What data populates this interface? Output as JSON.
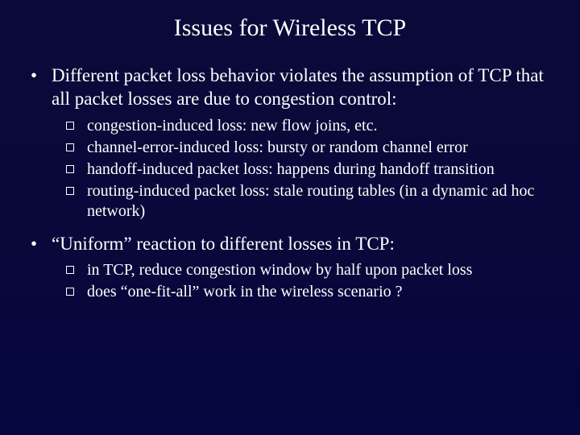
{
  "slide": {
    "title": "Issues for Wireless TCP",
    "bullets": [
      {
        "text": "Different packet loss behavior violates the assumption of TCP that all packet losses are due to congestion control:",
        "sub": [
          "congestion-induced loss: new flow joins, etc.",
          "channel-error-induced loss:  bursty or random channel error",
          "handoff-induced packet loss: happens during handoff transition",
          "routing-induced packet loss: stale routing tables (in a dynamic ad hoc network)"
        ]
      },
      {
        "text": "“Uniform” reaction to different losses in TCP:",
        "sub": [
          "in TCP, reduce congestion window by half upon packet loss",
          "does “one-fit-all” work in the wireless scenario ?"
        ]
      }
    ],
    "colors": {
      "background_top": "#0a0a3a",
      "background_bottom": "#060640",
      "text": "#ffffff"
    },
    "typography": {
      "title_fontsize": 30,
      "level1_fontsize": 23,
      "level2_fontsize": 20,
      "font_family": "Times New Roman"
    }
  }
}
